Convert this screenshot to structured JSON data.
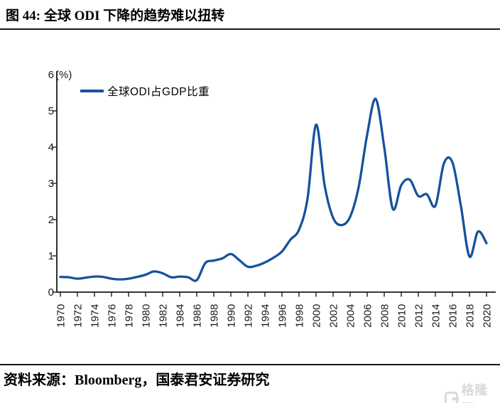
{
  "title": "图 44: 全球 ODI 下降的趋势难以扭转",
  "source": "资料来源：Bloomberg，国泰君安证券研究",
  "watermark": {
    "text": "格隆汇"
  },
  "chart_data": {
    "type": "line",
    "title": "",
    "unit_label": "(%)",
    "legend_label": "全球ODI占GDP比重",
    "legend_position": "top-left-inside",
    "grid": false,
    "ylim": [
      0,
      6
    ],
    "yticks": [
      0,
      1,
      2,
      3,
      4,
      5,
      6
    ],
    "xticks_every": 2,
    "xtick_label_rotation": -90,
    "x": [
      1970,
      1971,
      1972,
      1973,
      1974,
      1975,
      1976,
      1977,
      1978,
      1979,
      1980,
      1981,
      1982,
      1983,
      1984,
      1985,
      1986,
      1987,
      1988,
      1989,
      1990,
      1991,
      1992,
      1993,
      1994,
      1995,
      1996,
      1997,
      1998,
      1999,
      2000,
      2001,
      2002,
      2003,
      2004,
      2005,
      2006,
      2007,
      2008,
      2009,
      2010,
      2011,
      2012,
      2013,
      2014,
      2015,
      2016,
      2017,
      2018,
      2019,
      2020
    ],
    "series": [
      {
        "name": "全球ODI占GDP比重",
        "color": "#16529E",
        "values": [
          0.42,
          0.41,
          0.37,
          0.4,
          0.43,
          0.42,
          0.37,
          0.35,
          0.37,
          0.42,
          0.48,
          0.57,
          0.52,
          0.41,
          0.43,
          0.41,
          0.33,
          0.8,
          0.87,
          0.93,
          1.05,
          0.88,
          0.7,
          0.73,
          0.82,
          0.95,
          1.12,
          1.45,
          1.72,
          2.58,
          4.62,
          2.95,
          2.05,
          1.85,
          2.08,
          2.9,
          4.35,
          5.33,
          4.0,
          2.3,
          2.95,
          3.1,
          2.65,
          2.7,
          2.38,
          3.55,
          3.58,
          2.37,
          0.98,
          1.67,
          1.35
        ]
      }
    ],
    "axis_color": "#1a1a1a"
  }
}
